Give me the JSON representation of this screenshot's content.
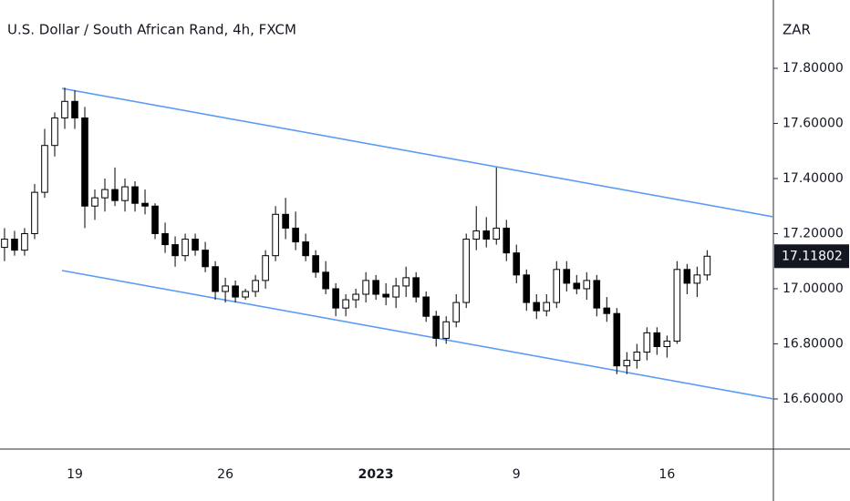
{
  "chart_data": {
    "type": "candlestick",
    "title": "U.S. Dollar / South African Rand, 4h, FXCM",
    "y_axis_label": "ZAR",
    "categories": [
      null,
      null,
      null,
      null,
      null,
      null,
      null,
      "19",
      null,
      null,
      null,
      null,
      null,
      null,
      null,
      null,
      null,
      null,
      null,
      null,
      null,
      null,
      "26",
      null,
      null,
      null,
      null,
      null,
      null,
      null,
      null,
      null,
      null,
      null,
      null,
      null,
      null,
      "2023",
      null,
      null,
      null,
      null,
      null,
      null,
      null,
      null,
      null,
      null,
      null,
      null,
      null,
      "9",
      null,
      null,
      null,
      null,
      null,
      null,
      null,
      null,
      null,
      null,
      null,
      null,
      null,
      null,
      "16",
      null,
      null,
      null,
      null
    ],
    "open": [
      17.15,
      17.18,
      17.14,
      17.2,
      17.35,
      17.52,
      17.62,
      17.68,
      17.62,
      17.3,
      17.33,
      17.36,
      17.32,
      17.37,
      17.31,
      17.3,
      17.2,
      17.16,
      17.12,
      17.18,
      17.14,
      17.08,
      16.99,
      17.01,
      16.97,
      16.99,
      17.03,
      17.12,
      17.27,
      17.22,
      17.17,
      17.12,
      17.06,
      17.0,
      16.93,
      16.96,
      16.98,
      17.03,
      16.98,
      16.97,
      17.01,
      17.04,
      16.97,
      16.9,
      16.82,
      16.88,
      16.95,
      17.18,
      17.21,
      17.18,
      17.22,
      17.13,
      17.05,
      16.95,
      16.92,
      16.95,
      17.07,
      17.02,
      17.0,
      17.03,
      16.93,
      16.91,
      16.72,
      16.74,
      16.77,
      16.84,
      16.79,
      16.81,
      17.07,
      17.02,
      17.05
    ],
    "high": [
      17.22,
      17.21,
      17.22,
      17.38,
      17.58,
      17.64,
      17.73,
      17.72,
      17.66,
      17.36,
      17.4,
      17.44,
      17.4,
      17.39,
      17.36,
      17.31,
      17.24,
      17.19,
      17.2,
      17.2,
      17.17,
      17.1,
      17.04,
      17.03,
      17.0,
      17.05,
      17.14,
      17.3,
      17.33,
      17.28,
      17.2,
      17.14,
      17.1,
      17.02,
      16.98,
      17.0,
      17.06,
      17.05,
      17.02,
      17.04,
      17.08,
      17.06,
      16.99,
      16.92,
      16.9,
      16.98,
      17.2,
      17.3,
      17.26,
      17.44,
      17.25,
      17.16,
      17.07,
      16.98,
      16.98,
      17.1,
      17.1,
      17.05,
      17.06,
      17.05,
      16.97,
      16.93,
      16.77,
      16.8,
      16.86,
      16.86,
      16.83,
      17.1,
      17.09,
      17.08,
      17.14
    ],
    "low": [
      17.1,
      17.12,
      17.12,
      17.18,
      17.33,
      17.48,
      17.58,
      17.58,
      17.22,
      17.25,
      17.28,
      17.3,
      17.28,
      17.28,
      17.27,
      17.18,
      17.13,
      17.08,
      17.1,
      17.12,
      17.06,
      16.96,
      16.95,
      16.95,
      16.96,
      16.97,
      17.0,
      17.1,
      17.18,
      17.14,
      17.1,
      17.04,
      16.98,
      16.9,
      16.9,
      16.93,
      16.95,
      16.96,
      16.94,
      16.93,
      16.97,
      16.95,
      16.88,
      16.79,
      16.8,
      16.86,
      16.93,
      17.14,
      17.15,
      17.16,
      17.1,
      17.02,
      16.92,
      16.89,
      16.9,
      16.93,
      16.99,
      16.98,
      16.96,
      16.9,
      16.88,
      16.69,
      16.69,
      16.71,
      16.74,
      16.76,
      16.75,
      16.8,
      16.98,
      16.97,
      17.03
    ],
    "close": [
      17.18,
      17.14,
      17.2,
      17.35,
      17.52,
      17.62,
      17.68,
      17.62,
      17.3,
      17.33,
      17.36,
      17.32,
      17.37,
      17.31,
      17.3,
      17.2,
      17.16,
      17.12,
      17.18,
      17.14,
      17.08,
      16.99,
      17.01,
      16.97,
      16.99,
      17.03,
      17.12,
      17.27,
      17.22,
      17.17,
      17.12,
      17.06,
      17.0,
      16.93,
      16.96,
      16.98,
      17.03,
      16.98,
      16.97,
      17.01,
      17.04,
      16.97,
      16.9,
      16.82,
      16.88,
      16.95,
      17.18,
      17.21,
      17.18,
      17.22,
      17.13,
      17.05,
      16.95,
      16.92,
      16.95,
      17.07,
      17.02,
      17.0,
      17.03,
      16.93,
      16.91,
      16.72,
      16.74,
      16.77,
      16.84,
      16.79,
      16.81,
      17.07,
      17.02,
      17.05,
      17.11802
    ],
    "up_color": "#ffffff",
    "down_color": "#000000",
    "edge_color": "#000000",
    "trendlines": [
      {
        "color": "#5b9cf6",
        "x": [
          5.73,
          76.6
        ],
        "values": [
          17.727,
          17.261
        ]
      },
      {
        "color": "#5b9cf6",
        "x": [
          5.73,
          76.6
        ],
        "values": [
          17.066,
          16.6
        ]
      }
    ],
    "last_price": {
      "value": 17.11802,
      "label": "17.11802"
    },
    "xlim": [
      -0.45,
      76.6
    ],
    "ylim": [
      16.418,
      18.048
    ],
    "yticks": [
      {
        "value": 16.6,
        "label": "16.60000"
      },
      {
        "value": 16.8,
        "label": "16.80000"
      },
      {
        "value": 17.0,
        "label": "17.00000"
      },
      {
        "value": 17.2,
        "label": "17.20000"
      },
      {
        "value": 17.4,
        "label": "17.40000"
      },
      {
        "value": 17.6,
        "label": "17.60000"
      },
      {
        "value": 17.8,
        "label": "17.80000"
      }
    ]
  }
}
